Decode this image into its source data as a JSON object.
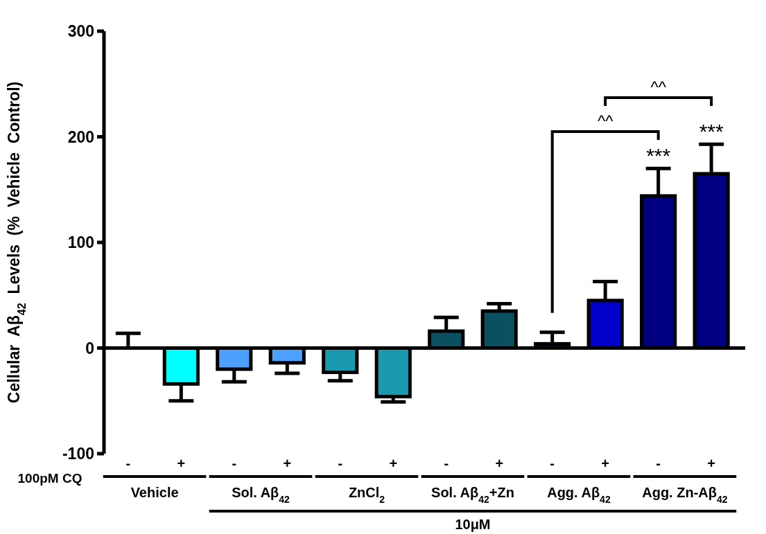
{
  "chart_data": {
    "type": "bar",
    "ylabel": "Cellular  Aβ$_{42}$  Levels  (%  Vehicle  Control)",
    "categories": [
      "-",
      "+",
      "-",
      "+",
      "-",
      "+",
      "-",
      "+",
      "-",
      "+",
      "-",
      "+"
    ],
    "values": [
      0,
      -34,
      -20,
      -14,
      -23,
      -46,
      16,
      35,
      4,
      45,
      144,
      165
    ],
    "errors": [
      [
        0,
        14
      ],
      [
        -50,
        -34
      ],
      [
        -32,
        -20
      ],
      [
        -24,
        -14
      ],
      [
        -31,
        -23
      ],
      [
        -51,
        -46
      ],
      [
        16,
        29
      ],
      [
        35,
        42
      ],
      [
        4,
        15
      ],
      [
        45,
        63
      ],
      [
        144,
        170
      ],
      [
        165,
        193
      ]
    ],
    "colors": [
      "#00ffff",
      "#00ffff",
      "#4da0ff",
      "#4da0ff",
      "#1a9aaf",
      "#1a9aaf",
      "#0a5060",
      "#0a5060",
      "#000080",
      "#0000c8",
      "#000080",
      "#000080"
    ],
    "ylim": [
      -100,
      300
    ],
    "yticks": [
      -100,
      0,
      100,
      200,
      300
    ],
    "annotations": [
      "100pM CQ",
      "Vehicle",
      "Sol. Aβ$_{42}$",
      "ZnCl$_{2}$",
      "Sol. Aβ$_{42}$+Zn",
      "Agg. Aβ$_{42}$",
      "Agg. Zn-Aβ$_{42}$",
      "10μM",
      "^^",
      "^^",
      "***",
      "***"
    ]
  }
}
